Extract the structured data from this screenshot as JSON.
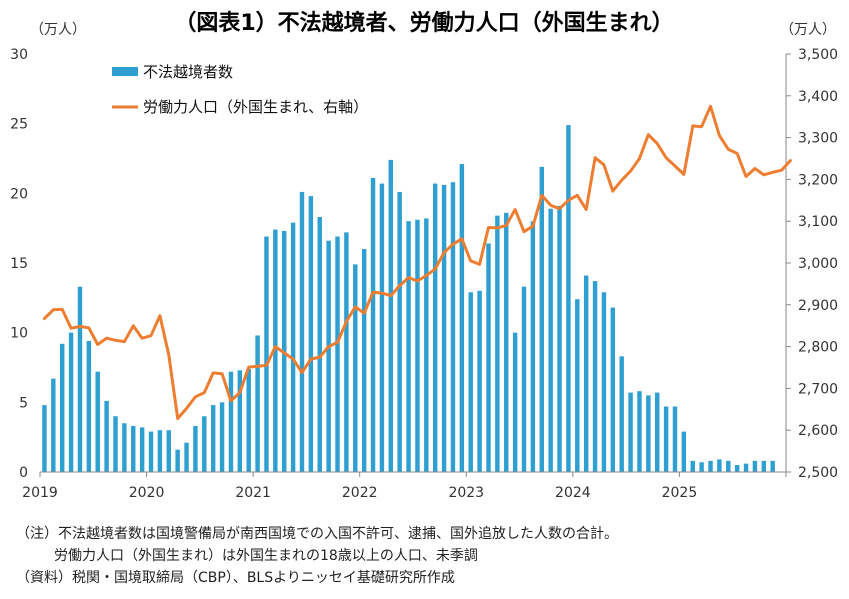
{
  "chart_data": {
    "type": "bar+line",
    "title": "（図表1）不法越境者、労働力人口（外国生まれ）",
    "left_axis": {
      "unit": "（万人）",
      "ylim": [
        0,
        30
      ],
      "ticks": [
        "0",
        "5",
        "10",
        "15",
        "20",
        "25",
        "30"
      ]
    },
    "right_axis": {
      "unit": "（万人）",
      "ylim": [
        2500,
        3500
      ],
      "ticks": [
        "2,500",
        "2,600",
        "2,700",
        "2,800",
        "2,900",
        "3,000",
        "3,100",
        "3,200",
        "3,300",
        "3,400",
        "3,500"
      ]
    },
    "x_ticks": [
      "2019",
      "2020",
      "2021",
      "2022",
      "2023",
      "2024",
      "2025"
    ],
    "colors": {
      "bar": "#2e9fd0",
      "line": "#ed7d31",
      "axis": "#888888"
    },
    "bar_series": {
      "name": "不法越境者数",
      "start": "2019-01",
      "values": [
        4.8,
        6.7,
        9.2,
        10.0,
        13.3,
        9.4,
        7.2,
        5.1,
        4.0,
        3.5,
        3.3,
        3.2,
        2.9,
        3.0,
        3.0,
        1.6,
        2.1,
        3.3,
        4.0,
        4.8,
        5.0,
        7.2,
        7.3,
        7.4,
        9.8,
        16.9,
        17.4,
        17.3,
        17.9,
        20.1,
        19.8,
        18.3,
        16.6,
        16.9,
        17.2,
        14.9,
        16.0,
        21.1,
        20.7,
        22.4,
        20.1,
        18.0,
        18.1,
        18.2,
        20.7,
        20.6,
        20.8,
        22.1,
        12.9,
        13.0,
        16.4,
        18.4,
        18.6,
        10.0,
        13.3,
        18.0,
        21.9,
        18.9,
        19.1,
        24.9,
        12.4,
        14.1,
        13.7,
        12.9,
        11.8,
        8.3,
        5.7,
        5.8,
        5.5,
        5.7,
        4.7,
        4.7,
        2.9,
        0.8,
        0.7,
        0.8,
        0.9,
        0.8,
        0.5,
        0.6,
        0.8,
        0.8,
        0.8
      ]
    },
    "line_series": {
      "name": "労働力人口（外国生まれ、右軸）",
      "start": "2019-01",
      "values": [
        2867,
        2888,
        2889,
        2844,
        2848,
        2845,
        2805,
        2820,
        2815,
        2812,
        2850,
        2820,
        2826,
        2874,
        2780,
        2628,
        2652,
        2680,
        2690,
        2737,
        2735,
        2670,
        2690,
        2751,
        2753,
        2755,
        2800,
        2785,
        2770,
        2738,
        2770,
        2775,
        2800,
        2810,
        2860,
        2895,
        2880,
        2930,
        2928,
        2922,
        2946,
        2965,
        2957,
        2970,
        2986,
        3025,
        3045,
        3058,
        3005,
        2997,
        3085,
        3084,
        3090,
        3128,
        3075,
        3088,
        3162,
        3138,
        3130,
        3150,
        3162,
        3128,
        3252,
        3235,
        3172,
        3198,
        3220,
        3250,
        3307,
        3286,
        3252,
        3232,
        3212,
        3328,
        3326,
        3375,
        3305,
        3272,
        3262,
        3207,
        3226,
        3211,
        3217,
        3222,
        3245
      ]
    },
    "legend": [
      "不法越境者数",
      "労働力人口（外国生まれ、右軸）"
    ]
  },
  "notes": {
    "line1": "（注）不法越境者数は国境警備局が南西国境での入国不許可、逮捕、国外追放した人数の合計。",
    "line2": "労働力人口（外国生まれ）は外国生まれの18歳以上の人口、未季調",
    "line3": "（資料）税関・国境取締局（CBP）、BLSよりニッセイ基礎研究所作成"
  }
}
